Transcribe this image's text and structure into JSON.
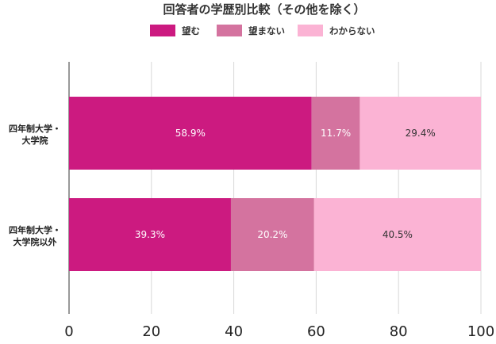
{
  "chart_data": {
    "type": "bar",
    "orientation": "horizontal",
    "stacked": true,
    "title": "回答者の学歴別比較（その他を除く）",
    "categories": [
      [
        "四年制大学・",
        "大学院"
      ],
      [
        "四年制大学・",
        "大学院以外"
      ]
    ],
    "series": [
      {
        "name": "望む",
        "values": [
          58.9,
          39.3
        ],
        "labels": [
          "58.9%",
          "39.3%"
        ],
        "color": "#cc1a80"
      },
      {
        "name": "望まない",
        "values": [
          11.7,
          20.2
        ],
        "labels": [
          "11.7%",
          "20.2%"
        ],
        "color": "#d4739f"
      },
      {
        "name": "わからない",
        "values": [
          29.4,
          40.5
        ],
        "labels": [
          "29.4%",
          "40.5%"
        ],
        "color": "#fbb3d4"
      }
    ],
    "xlim": [
      0,
      100
    ],
    "xticks": [
      0,
      20,
      40,
      60,
      80,
      100
    ],
    "grid": true,
    "legend_position": "top"
  }
}
